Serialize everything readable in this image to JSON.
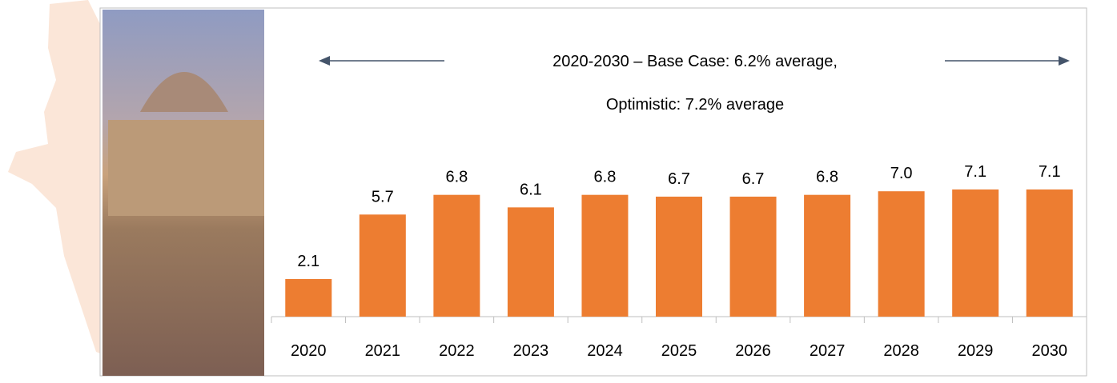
{
  "chart_data": {
    "type": "bar",
    "annotations": [
      "2020-2030 – Base Case: 6.2% average,",
      "Optimistic: 7.2% average"
    ],
    "categories": [
      "2020",
      "2021",
      "2022",
      "2023",
      "2024",
      "2025",
      "2026",
      "2027",
      "2028",
      "2029",
      "2030"
    ],
    "values": [
      2.1,
      5.7,
      6.8,
      6.1,
      6.8,
      6.7,
      6.7,
      6.8,
      7.0,
      7.1,
      7.1
    ],
    "value_labels": [
      "2.1",
      "5.7",
      "6.8",
      "6.1",
      "6.8",
      "6.7",
      "6.7",
      "6.8",
      "7.0",
      "7.1",
      "7.1"
    ],
    "color": "#ed7d31"
  }
}
